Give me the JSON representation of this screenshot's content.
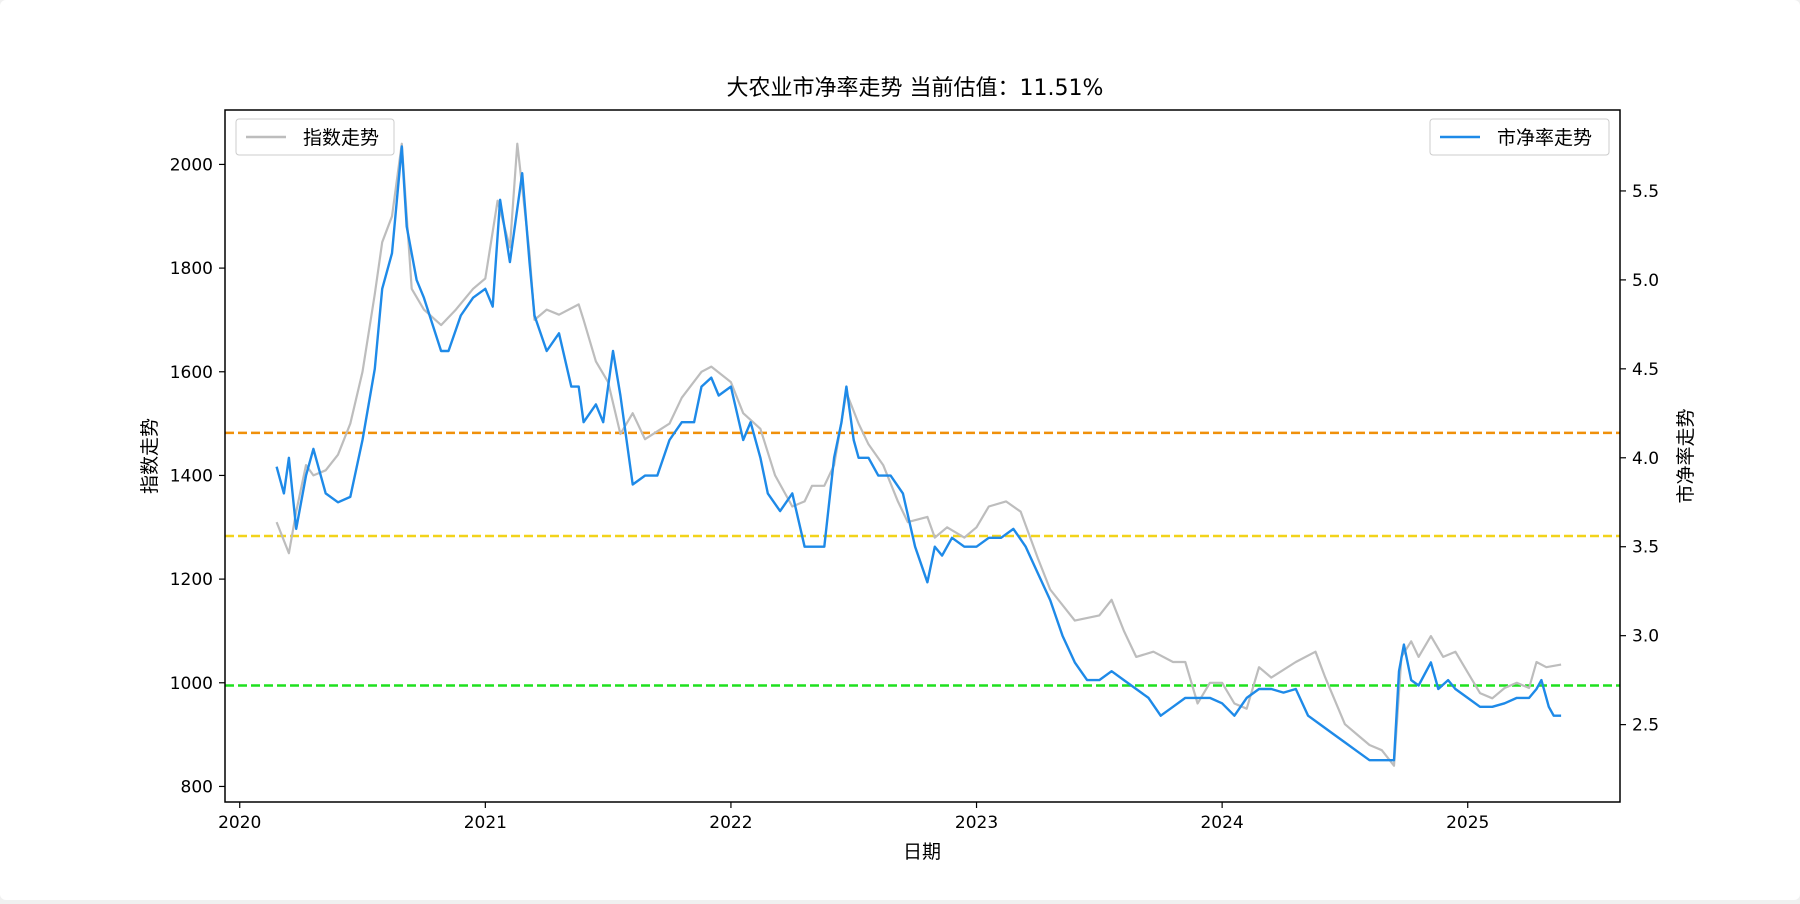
{
  "colors": {
    "index_line": "#bdbdbd",
    "pb_line": "#1e8ae8",
    "upper_line": "#f0900a",
    "mid_line": "#f2d31b",
    "lower_line": "#1fe01f",
    "background": "#ffffff"
  },
  "chart_data": {
    "type": "line",
    "title": "大农业市净率走势 当前估值：11.51%",
    "xlabel": "日期",
    "ylabel_left": "指数走势",
    "ylabel_right": "市净率走势",
    "xlim": [
      2019.94,
      2025.62
    ],
    "ylim_left": [
      770,
      2105
    ],
    "ylim_right": [
      2.065,
      5.955
    ],
    "x_ticks": [
      2020,
      2021,
      2022,
      2023,
      2024,
      2025
    ],
    "x_tick_labels": [
      "2020",
      "2021",
      "2022",
      "2023",
      "2024",
      "2025"
    ],
    "y_left_ticks": [
      800,
      1000,
      1200,
      1400,
      1600,
      1800,
      2000
    ],
    "y_left_tick_labels": [
      "800",
      "1000",
      "1200",
      "1400",
      "1600",
      "1800",
      "2000"
    ],
    "y_right_ticks": [
      2.5,
      3.0,
      3.5,
      4.0,
      4.5,
      5.0,
      5.5
    ],
    "y_right_tick_labels": [
      "2.5",
      "3.0",
      "3.5",
      "4.0",
      "4.5",
      "5.0",
      "5.5"
    ],
    "legend_left": {
      "label": "指数走势",
      "position": "top-left"
    },
    "legend_right": {
      "label": "市净率走势",
      "position": "top-right"
    },
    "reference_lines": [
      {
        "name": "upper-reference-line",
        "axis": "right",
        "value": 4.14,
        "color": "#f0900a",
        "style": "dashed"
      },
      {
        "name": "mid-reference-line",
        "axis": "right",
        "value": 3.56,
        "color": "#f2d31b",
        "style": "dashed"
      },
      {
        "name": "lower-reference-line",
        "axis": "right",
        "value": 2.72,
        "color": "#1fe01f",
        "style": "dashed"
      }
    ],
    "series": [
      {
        "name": "指数走势",
        "axis": "left",
        "color": "#bdbdbd",
        "x": [
          2020.15,
          2020.2,
          2020.23,
          2020.27,
          2020.3,
          2020.35,
          2020.4,
          2020.45,
          2020.5,
          2020.55,
          2020.58,
          2020.62,
          2020.66,
          2020.7,
          2020.75,
          2020.82,
          2020.88,
          2020.95,
          2021.0,
          2021.05,
          2021.1,
          2021.13,
          2021.18,
          2021.2,
          2021.25,
          2021.3,
          2021.38,
          2021.4,
          2021.45,
          2021.5,
          2021.55,
          2021.6,
          2021.65,
          2021.75,
          2021.8,
          2021.88,
          2021.92,
          2022.0,
          2022.05,
          2022.12,
          2022.18,
          2022.25,
          2022.3,
          2022.33,
          2022.38,
          2022.42,
          2022.47,
          2022.52,
          2022.56,
          2022.62,
          2022.68,
          2022.72,
          2022.8,
          2022.83,
          2022.88,
          2022.95,
          2023.0,
          2023.05,
          2023.12,
          2023.18,
          2023.25,
          2023.3,
          2023.4,
          2023.5,
          2023.55,
          2023.6,
          2023.65,
          2023.72,
          2023.8,
          2023.85,
          2023.9,
          2023.95,
          2024.0,
          2024.05,
          2024.1,
          2024.15,
          2024.2,
          2024.3,
          2024.38,
          2024.42,
          2024.5,
          2024.55,
          2024.6,
          2024.65,
          2024.7,
          2024.73,
          2024.77,
          2024.8,
          2024.85,
          2024.9,
          2024.95,
          2025.0,
          2025.05,
          2025.1,
          2025.15,
          2025.2,
          2025.25,
          2025.28,
          2025.32,
          2025.38
        ],
        "values": [
          1310,
          1250,
          1330,
          1420,
          1400,
          1410,
          1440,
          1500,
          1600,
          1750,
          1850,
          1900,
          2040,
          1760,
          1720,
          1690,
          1720,
          1760,
          1780,
          1930,
          1840,
          2040,
          1830,
          1700,
          1720,
          1710,
          1730,
          1700,
          1620,
          1580,
          1480,
          1520,
          1470,
          1500,
          1550,
          1600,
          1610,
          1580,
          1520,
          1490,
          1400,
          1340,
          1350,
          1380,
          1380,
          1420,
          1560,
          1500,
          1460,
          1420,
          1350,
          1310,
          1320,
          1280,
          1300,
          1280,
          1300,
          1340,
          1350,
          1330,
          1240,
          1180,
          1120,
          1130,
          1160,
          1100,
          1050,
          1060,
          1040,
          1040,
          960,
          1000,
          1000,
          960,
          950,
          1030,
          1010,
          1040,
          1060,
          1010,
          920,
          900,
          880,
          870,
          840,
          1050,
          1080,
          1050,
          1090,
          1050,
          1060,
          1020,
          980,
          970,
          990,
          1000,
          990,
          1040,
          1030,
          1035
        ]
      },
      {
        "name": "市净率走势",
        "axis": "right",
        "color": "#1e8ae8",
        "x": [
          2020.15,
          2020.18,
          2020.2,
          2020.23,
          2020.27,
          2020.3,
          2020.35,
          2020.4,
          2020.45,
          2020.5,
          2020.55,
          2020.58,
          2020.62,
          2020.66,
          2020.68,
          2020.72,
          2020.75,
          2020.82,
          2020.85,
          2020.9,
          2020.95,
          2021.0,
          2021.03,
          2021.06,
          2021.1,
          2021.13,
          2021.15,
          2021.18,
          2021.2,
          2021.25,
          2021.3,
          2021.35,
          2021.38,
          2021.4,
          2021.45,
          2021.48,
          2021.52,
          2021.55,
          2021.6,
          2021.65,
          2021.7,
          2021.75,
          2021.8,
          2021.85,
          2021.88,
          2021.92,
          2021.95,
          2022.0,
          2022.05,
          2022.08,
          2022.12,
          2022.15,
          2022.2,
          2022.25,
          2022.3,
          2022.33,
          2022.35,
          2022.38,
          2022.42,
          2022.45,
          2022.47,
          2022.5,
          2022.52,
          2022.56,
          2022.6,
          2022.65,
          2022.7,
          2022.75,
          2022.8,
          2022.83,
          2022.86,
          2022.9,
          2022.95,
          2023.0,
          2023.05,
          2023.1,
          2023.15,
          2023.2,
          2023.25,
          2023.3,
          2023.35,
          2023.4,
          2023.45,
          2023.5,
          2023.55,
          2023.6,
          2023.65,
          2023.7,
          2023.75,
          2023.8,
          2023.85,
          2023.9,
          2023.95,
          2024.0,
          2024.05,
          2024.1,
          2024.15,
          2024.2,
          2024.25,
          2024.3,
          2024.35,
          2024.4,
          2024.45,
          2024.5,
          2024.55,
          2024.6,
          2024.65,
          2024.7,
          2024.72,
          2024.74,
          2024.77,
          2024.8,
          2024.85,
          2024.88,
          2024.92,
          2024.95,
          2025.0,
          2025.05,
          2025.1,
          2025.15,
          2025.2,
          2025.25,
          2025.28,
          2025.3,
          2025.33,
          2025.35,
          2025.38
        ],
        "values": [
          3.95,
          3.8,
          4.0,
          3.6,
          3.9,
          4.05,
          3.8,
          3.75,
          3.78,
          4.1,
          4.5,
          4.95,
          5.15,
          5.75,
          5.3,
          5.0,
          4.9,
          4.6,
          4.6,
          4.8,
          4.9,
          4.95,
          4.85,
          5.45,
          5.1,
          5.4,
          5.6,
          5.1,
          4.8,
          4.6,
          4.7,
          4.4,
          4.4,
          4.2,
          4.3,
          4.2,
          4.6,
          4.35,
          3.85,
          3.9,
          3.9,
          4.1,
          4.2,
          4.2,
          4.4,
          4.45,
          4.35,
          4.4,
          4.1,
          4.2,
          4.0,
          3.8,
          3.7,
          3.8,
          3.5,
          3.5,
          3.5,
          3.5,
          4.0,
          4.2,
          4.4,
          4.1,
          4.0,
          4.0,
          3.9,
          3.9,
          3.8,
          3.5,
          3.3,
          3.5,
          3.45,
          3.55,
          3.5,
          3.5,
          3.55,
          3.55,
          3.6,
          3.5,
          3.35,
          3.2,
          3.0,
          2.85,
          2.75,
          2.75,
          2.8,
          2.75,
          2.7,
          2.65,
          2.55,
          2.6,
          2.65,
          2.65,
          2.65,
          2.62,
          2.55,
          2.65,
          2.7,
          2.7,
          2.68,
          2.7,
          2.55,
          2.5,
          2.45,
          2.4,
          2.35,
          2.3,
          2.3,
          2.3,
          2.8,
          2.95,
          2.75,
          2.72,
          2.85,
          2.7,
          2.75,
          2.7,
          2.65,
          2.6,
          2.6,
          2.62,
          2.65,
          2.65,
          2.7,
          2.75,
          2.6,
          2.55,
          2.55
        ]
      }
    ]
  }
}
